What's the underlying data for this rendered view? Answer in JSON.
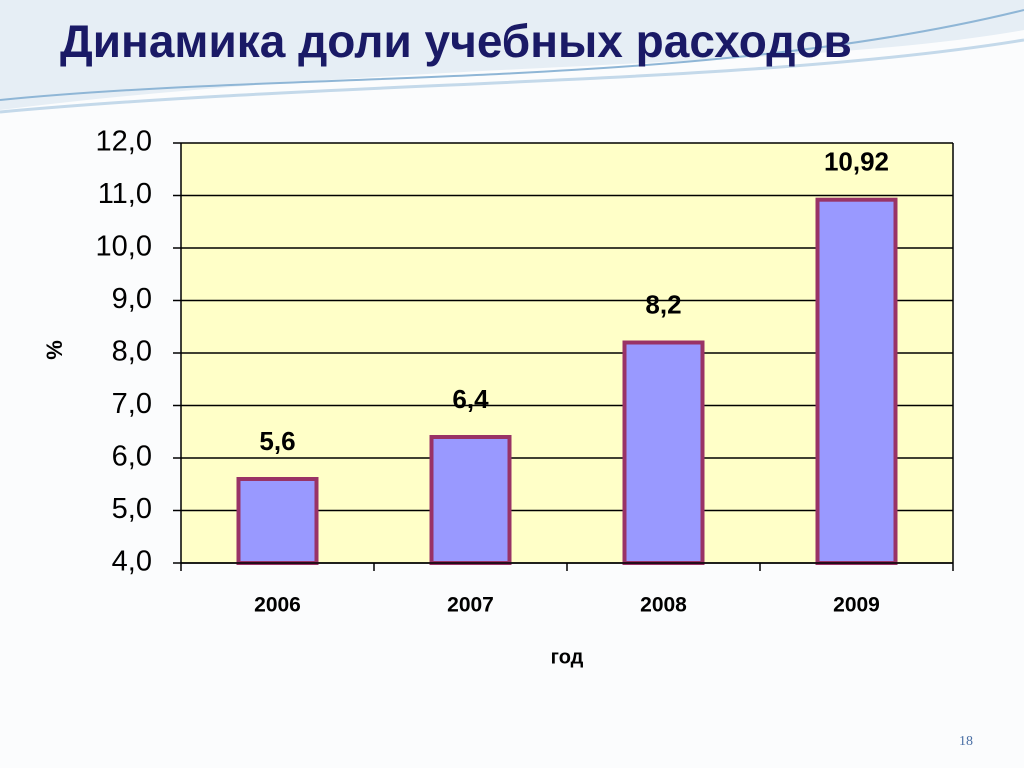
{
  "chart_data": {
    "type": "bar",
    "title": "Динамика доли учебных расходов",
    "categories": [
      "2006",
      "2007",
      "2008",
      "2009"
    ],
    "values": [
      5.6,
      6.4,
      8.2,
      10.92
    ],
    "value_labels": [
      "5,6",
      "6,4",
      "8,2",
      "10,92"
    ],
    "color": "#9999ff",
    "edge_color": "#993366",
    "plot_background": "#ffffc8",
    "x_label": "год",
    "y_label": "%",
    "ylim": [
      4,
      12
    ],
    "yticks": [
      {
        "value": 4,
        "label": "4,0"
      },
      {
        "value": 5,
        "label": "5,0"
      },
      {
        "value": 6,
        "label": "6,0"
      },
      {
        "value": 7,
        "label": "7,0"
      },
      {
        "value": 8,
        "label": "8,0"
      },
      {
        "value": 9,
        "label": "9,0"
      },
      {
        "value": 10,
        "label": "10,0"
      },
      {
        "value": 11,
        "label": "11,0"
      },
      {
        "value": 12,
        "label": "12,0"
      }
    ],
    "grid": true
  },
  "page_number": "18"
}
